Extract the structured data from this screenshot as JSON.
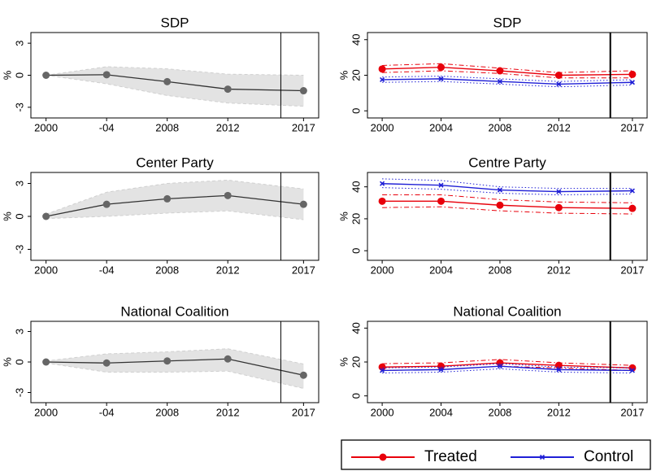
{
  "chart_data": [
    {
      "type": "band-line",
      "title": "SDP",
      "ylabel": "%",
      "x": [
        2000,
        2004,
        2008,
        2012,
        2017
      ],
      "values": [
        0,
        0.05,
        -0.6,
        -1.3,
        -1.45
      ],
      "lower": [
        0,
        -0.8,
        -1.9,
        -2.6,
        -2.9
      ],
      "upper": [
        0,
        0.8,
        0.6,
        0.1,
        0
      ],
      "color": "#333333",
      "marker_color": "#666666",
      "band_color": "#e3e3e3",
      "xlim": [
        1999,
        2018
      ],
      "xticks": [
        2000,
        {
          "value": 2004,
          "label": "-04"
        },
        2008,
        2012,
        2017
      ],
      "ylim": [
        -4,
        4
      ],
      "yticks": [
        -3,
        0,
        3
      ],
      "vline": 2015.5
    },
    {
      "type": "line-ci",
      "title": "SDP",
      "ylabel": "%",
      "x": [
        2000,
        2004,
        2008,
        2012,
        2017
      ],
      "series": [
        {
          "color": "#e8000b",
          "marker": "circle",
          "ci_style": "dashdot",
          "values": [
            23.5,
            24.5,
            22.5,
            20,
            20.5
          ],
          "lower": [
            21.5,
            22.5,
            21,
            18.5,
            18.5
          ],
          "upper": [
            25.5,
            26.5,
            24,
            21.5,
            22.5
          ]
        },
        {
          "color": "#1f1fd6",
          "marker": "cross",
          "ci_style": "dotted",
          "values": [
            17.5,
            18,
            16.5,
            15,
            16
          ],
          "lower": [
            16,
            16.5,
            15,
            13.5,
            14.5
          ],
          "upper": [
            19,
            19.5,
            18,
            16.5,
            17.5
          ]
        }
      ],
      "xlim": [
        1999,
        2018
      ],
      "xticks": [
        2000,
        2004,
        2008,
        2012,
        2017
      ],
      "ylim": [
        -4,
        44
      ],
      "yticks": [
        0,
        20,
        40
      ],
      "vline": 2015.5
    },
    {
      "type": "band-line",
      "title": "Center Party",
      "ylabel": "%",
      "x": [
        2000,
        2004,
        2008,
        2012,
        2017
      ],
      "values": [
        0,
        1.1,
        1.6,
        1.9,
        1.1
      ],
      "lower": [
        -0.2,
        0,
        0.3,
        0.5,
        -0.3
      ],
      "upper": [
        0.2,
        2.2,
        3.0,
        3.3,
        2.5
      ],
      "color": "#333333",
      "marker_color": "#666666",
      "band_color": "#e3e3e3",
      "xlim": [
        1999,
        2018
      ],
      "xticks": [
        2000,
        {
          "value": 2004,
          "label": "-04"
        },
        2008,
        2012,
        2017
      ],
      "ylim": [
        -4,
        4
      ],
      "yticks": [
        -3,
        0,
        3
      ],
      "vline": 2015.5
    },
    {
      "type": "line-ci",
      "title": "Centre Party",
      "ylabel": "%",
      "x": [
        2000,
        2004,
        2008,
        2012,
        2017
      ],
      "series": [
        {
          "color": "#e8000b",
          "marker": "circle",
          "ci_style": "dashdot",
          "values": [
            31,
            31,
            28.5,
            27,
            26.5
          ],
          "lower": [
            27,
            27.5,
            25,
            23.5,
            23
          ],
          "upper": [
            35,
            35,
            32,
            30.5,
            30
          ]
        },
        {
          "color": "#1f1fd6",
          "marker": "cross",
          "ci_style": "dotted",
          "values": [
            42,
            41,
            38,
            37,
            37.5
          ],
          "lower": [
            39.5,
            38.5,
            36,
            35,
            35.5
          ],
          "upper": [
            45,
            44,
            40,
            39,
            39
          ]
        }
      ],
      "xlim": [
        1999,
        2018
      ],
      "xticks": [
        2000,
        2004,
        2008,
        2012,
        2017
      ],
      "ylim": [
        -6,
        49
      ],
      "yticks": [
        0,
        20,
        40
      ],
      "vline": 2015.5
    },
    {
      "type": "band-line",
      "title": "National Coalition",
      "ylabel": "%",
      "x": [
        2000,
        2004,
        2008,
        2012,
        2017
      ],
      "values": [
        0,
        -0.1,
        0.1,
        0.3,
        -1.3
      ],
      "lower": [
        -0.1,
        -1.0,
        -1.0,
        -0.9,
        -2.6
      ],
      "upper": [
        0.1,
        0.8,
        1.0,
        1.3,
        -0.2
      ],
      "color": "#333333",
      "marker_color": "#666666",
      "band_color": "#e3e3e3",
      "xlim": [
        1999,
        2018
      ],
      "xticks": [
        2000,
        {
          "value": 2004,
          "label": "-04"
        },
        2008,
        2012,
        2017
      ],
      "ylim": [
        -4,
        4
      ],
      "yticks": [
        -3,
        0,
        3
      ],
      "vline": 2015.5
    },
    {
      "type": "line-ci",
      "title": "National Coalition",
      "ylabel": "%",
      "x": [
        2000,
        2004,
        2008,
        2012,
        2017
      ],
      "series": [
        {
          "color": "#e8000b",
          "marker": "circle",
          "ci_style": "dashdot",
          "values": [
            17,
            17.5,
            19.5,
            18,
            16.5
          ],
          "lower": [
            15,
            15.5,
            17.5,
            16.5,
            15
          ],
          "upper": [
            19,
            19.5,
            21.5,
            19.5,
            18
          ]
        },
        {
          "color": "#1f1fd6",
          "marker": "cross",
          "ci_style": "dotted",
          "values": [
            15,
            15.5,
            17.5,
            15.5,
            15
          ],
          "lower": [
            13.5,
            14,
            16,
            14,
            13.5
          ],
          "upper": [
            16.5,
            17,
            19,
            17,
            16.5
          ]
        }
      ],
      "xlim": [
        1999,
        2018
      ],
      "xticks": [
        2000,
        2004,
        2008,
        2012,
        2017
      ],
      "ylim": [
        -4,
        44
      ],
      "yticks": [
        0,
        20,
        40
      ],
      "vline": 2015.5
    }
  ],
  "legend": [
    {
      "name": "Treated",
      "color": "#e8000b",
      "marker": "circle"
    },
    {
      "name": "Control",
      "color": "#1f1fd6",
      "marker": "cross"
    }
  ]
}
